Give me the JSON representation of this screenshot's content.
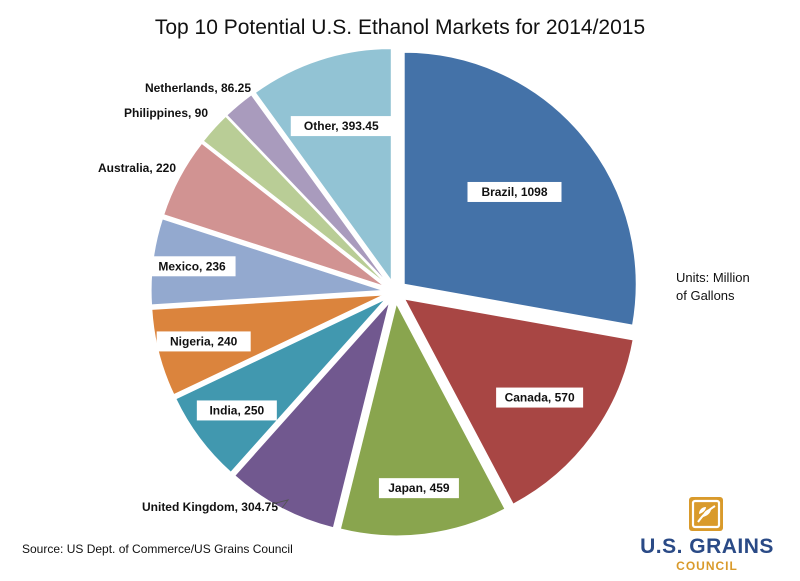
{
  "title": "Top 10 Potential U.S. Ethanol Markets for 2014/2015",
  "units": {
    "line1": "Units: Million",
    "line2": "of Gallons"
  },
  "source": "Source: US Dept.  of Commerce/US Grains Council",
  "logo": {
    "name": "U.S. GRAINS",
    "sub": "COUNCIL",
    "icon": "wheat-leaf-icon",
    "color": "#d99a2b",
    "name_color": "#2a4a86"
  },
  "chart_data": {
    "type": "pie",
    "title": "Top 10 Potential U.S. Ethanol Markets for 2014/2015",
    "legend": "none",
    "slices": [
      {
        "label": "Brazil, 1098",
        "name": "Brazil",
        "value": 1098,
        "color": "#4472a8"
      },
      {
        "label": "Canada, 570",
        "name": "Canada",
        "value": 570,
        "color": "#a84644"
      },
      {
        "label": "Japan, 459",
        "name": "Japan",
        "value": 459,
        "color": "#89a54e"
      },
      {
        "label": "United Kingdom, 304.75",
        "name": "United Kingdom",
        "value": 304.75,
        "color": "#71588f"
      },
      {
        "label": "India, 250",
        "name": "India",
        "value": 250,
        "color": "#4198af"
      },
      {
        "label": "Nigeria, 240",
        "name": "Nigeria",
        "value": 240,
        "color": "#db843d"
      },
      {
        "label": "Mexico, 236",
        "name": "Mexico",
        "value": 236,
        "color": "#93a9cf"
      },
      {
        "label": "Australia, 220",
        "name": "Australia",
        "value": 220,
        "color": "#d19392"
      },
      {
        "label": "Philippines, 90",
        "name": "Philippines",
        "value": 90,
        "color": "#b9cd96"
      },
      {
        "label": "Netherlands, 86.25",
        "name": "Netherlands",
        "value": 86.25,
        "color": "#a99bbd"
      },
      {
        "label": "Other, 393.45",
        "name": "Other",
        "value": 393.45,
        "color": "#92c3d4"
      }
    ]
  }
}
